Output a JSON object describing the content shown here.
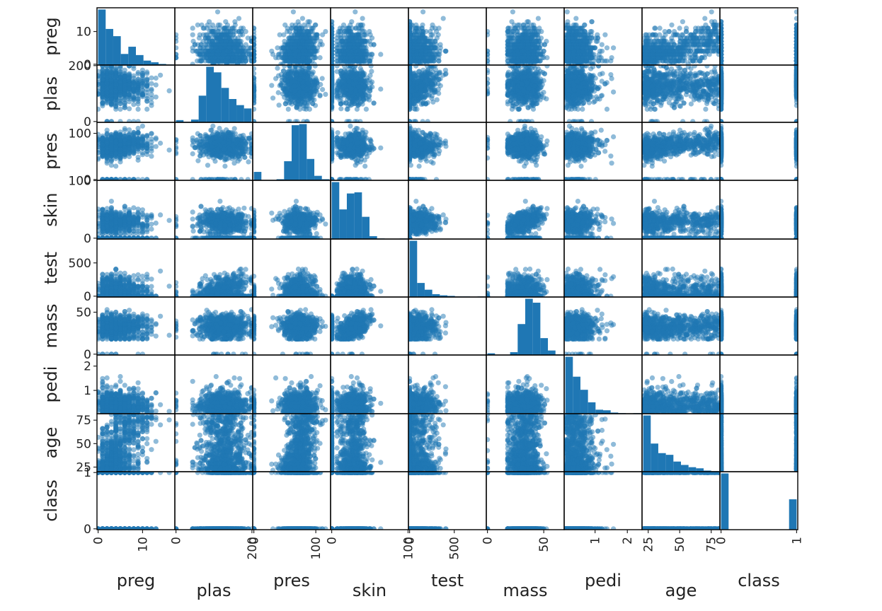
{
  "chart_data": {
    "type": "scatter",
    "kind": "scatter_matrix",
    "diagonal": "hist",
    "variables": [
      "preg",
      "plas",
      "pres",
      "skin",
      "test",
      "mass",
      "pedi",
      "age",
      "class"
    ],
    "ranges": {
      "preg": [
        0,
        17
      ],
      "plas": [
        0,
        199
      ],
      "pres": [
        0,
        122
      ],
      "skin": [
        0,
        99
      ],
      "test": [
        0,
        846
      ],
      "mass": [
        0,
        67.1
      ],
      "pedi": [
        0.078,
        2.42
      ],
      "age": [
        21,
        81
      ],
      "class": [
        0,
        1
      ]
    },
    "x_ticks": {
      "preg": [
        0,
        10
      ],
      "plas": [
        0,
        200
      ],
      "pres": [
        0,
        100
      ],
      "skin": [
        0,
        100
      ],
      "test": [
        0,
        500
      ],
      "mass": [
        0,
        50
      ],
      "pedi": [
        1,
        2
      ],
      "age": [
        25,
        50,
        75
      ],
      "class": [
        0,
        1
      ]
    },
    "x_tick_labels": {
      "preg": [
        "0",
        "10"
      ],
      "plas": [
        "0",
        "200"
      ],
      "pres": [
        "0",
        "100"
      ],
      "skin": [
        "0",
        "100"
      ],
      "test": [
        "0",
        "500"
      ],
      "mass": [
        "0",
        "50"
      ],
      "pedi": [
        "1",
        "2"
      ],
      "age": [
        "25",
        "50",
        "75"
      ],
      "class": [
        "0",
        "1"
      ]
    },
    "y_ticks": {
      "preg": [
        0,
        10
      ],
      "plas": [
        0,
        200
      ],
      "pres": [
        0,
        100
      ],
      "skin": [
        0,
        100
      ],
      "test": [
        0,
        500
      ],
      "mass": [
        0,
        50
      ],
      "pedi": [
        1,
        2
      ],
      "age": [
        25,
        50,
        75
      ],
      "class": [
        0,
        1
      ]
    },
    "y_tick_labels": {
      "preg": [
        "0",
        "10"
      ],
      "plas": [
        "0",
        "200"
      ],
      "pres": [
        "0",
        "100"
      ],
      "skin": [
        "0",
        "100"
      ],
      "test": [
        "0",
        "500"
      ],
      "mass": [
        "0",
        "50"
      ],
      "pedi": [
        "1",
        "2"
      ],
      "age": [
        "25",
        "50",
        "75"
      ],
      "class": [
        "0",
        "1"
      ]
    },
    "histograms": {
      "preg": [
        1.0,
        0.65,
        0.52,
        0.2,
        0.33,
        0.18,
        0.08,
        0.05,
        0.02,
        0.01
      ],
      "plas": [
        0.04,
        0.01,
        0.05,
        0.48,
        1.0,
        0.9,
        0.62,
        0.42,
        0.31,
        0.25
      ],
      "pres": [
        0.15,
        0.0,
        0.0,
        0.02,
        0.34,
        0.98,
        1.0,
        0.38,
        0.08,
        0.02
      ],
      "skin": [
        1.0,
        0.52,
        0.8,
        0.82,
        0.39,
        0.05,
        0.01,
        0.0,
        0.0,
        0.01
      ],
      "test": [
        1.0,
        0.25,
        0.13,
        0.05,
        0.03,
        0.02,
        0.01,
        0.01,
        0.0,
        0.01
      ],
      "mass": [
        0.03,
        0.0,
        0.0,
        0.05,
        0.55,
        1.0,
        0.93,
        0.3,
        0.08,
        0.01
      ],
      "pedi": [
        1.0,
        0.65,
        0.42,
        0.2,
        0.07,
        0.06,
        0.02,
        0.01,
        0.0,
        0.01
      ],
      "age": [
        1.0,
        0.5,
        0.33,
        0.3,
        0.18,
        0.12,
        0.08,
        0.06,
        0.02,
        0.01
      ],
      "class": [
        1.0,
        0.0,
        0.0,
        0.0,
        0.0,
        0.0,
        0.0,
        0.0,
        0.0,
        0.54
      ]
    },
    "point_color": "#1f77b4",
    "point_alpha": 0.5,
    "bar_color": "#1f77b4",
    "frame_color": "#000000",
    "sample_size": 768,
    "title": "",
    "grid": false
  }
}
